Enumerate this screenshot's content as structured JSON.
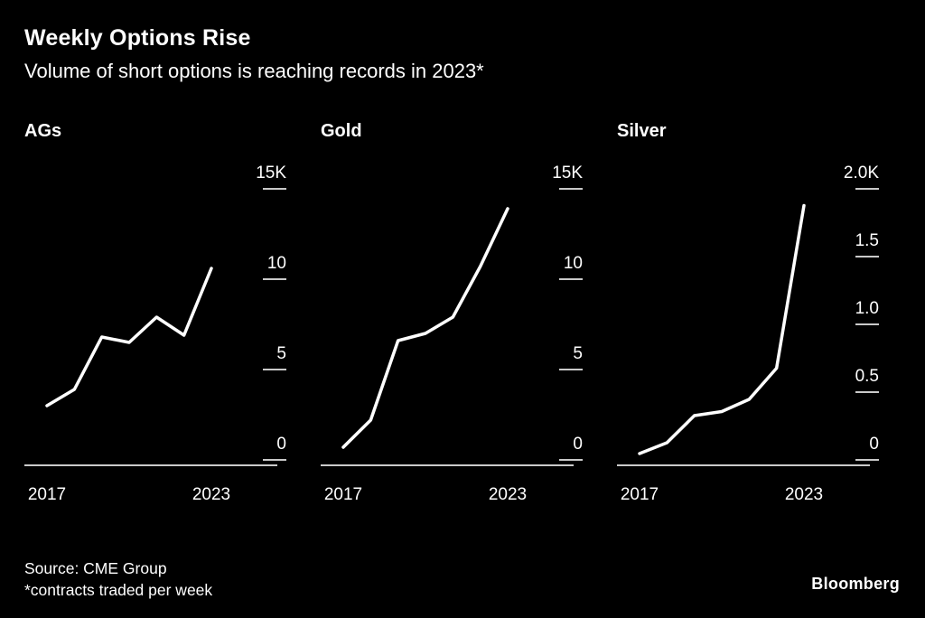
{
  "header": {
    "title": "Weekly Options Rise",
    "subtitle": "Volume of short options is reaching records in 2023*"
  },
  "footer": {
    "source": "Source: CME Group",
    "note": "*contracts traded per week",
    "brand": "Bloomberg"
  },
  "colors": {
    "background": "#000000",
    "text": "#ffffff",
    "line": "#ffffff",
    "axis": "#c9c9c9"
  },
  "chart_data": [
    {
      "type": "line",
      "title": "AGs",
      "x": [
        2017,
        2018,
        2019,
        2020,
        2021,
        2022,
        2023
      ],
      "values": [
        2.8,
        3.7,
        6.6,
        6.3,
        7.7,
        6.7,
        10.4
      ],
      "ylim": [
        0,
        15
      ],
      "yticks": [
        {
          "label": "15K",
          "value": 15
        },
        {
          "label": "10",
          "value": 10
        },
        {
          "label": "5",
          "value": 5
        },
        {
          "label": "0",
          "value": 0
        }
      ],
      "xticks": [
        {
          "label": "2017",
          "value": 2017
        },
        {
          "label": "2023",
          "value": 2023
        }
      ],
      "legend": "off",
      "grid": "off"
    },
    {
      "type": "line",
      "title": "Gold",
      "x": [
        2017,
        2018,
        2019,
        2020,
        2021,
        2022,
        2023
      ],
      "values": [
        0.5,
        2.0,
        6.4,
        6.8,
        7.7,
        10.5,
        13.7
      ],
      "ylim": [
        0,
        15
      ],
      "yticks": [
        {
          "label": "15K",
          "value": 15
        },
        {
          "label": "10",
          "value": 10
        },
        {
          "label": "5",
          "value": 5
        },
        {
          "label": "0",
          "value": 0
        }
      ],
      "xticks": [
        {
          "label": "2017",
          "value": 2017
        },
        {
          "label": "2023",
          "value": 2023
        }
      ],
      "legend": "off",
      "grid": "off"
    },
    {
      "type": "line",
      "title": "Silver",
      "x": [
        2017,
        2018,
        2019,
        2020,
        2021,
        2022,
        2023
      ],
      "values": [
        0.02,
        0.1,
        0.3,
        0.33,
        0.42,
        0.65,
        1.85
      ],
      "ylim": [
        0,
        2
      ],
      "yticks": [
        {
          "label": "2.0K",
          "value": 2.0
        },
        {
          "label": "1.5",
          "value": 1.5
        },
        {
          "label": "1.0",
          "value": 1.0
        },
        {
          "label": "0.5",
          "value": 0.5
        },
        {
          "label": "0",
          "value": 0
        }
      ],
      "xticks": [
        {
          "label": "2017",
          "value": 2017
        },
        {
          "label": "2023",
          "value": 2023
        }
      ],
      "legend": "off",
      "grid": "off"
    }
  ]
}
